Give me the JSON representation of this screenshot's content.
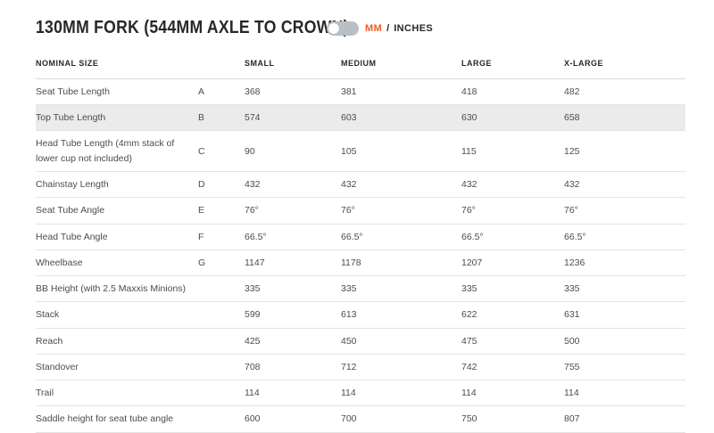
{
  "page": {
    "title": "130MM FORK (544MM AXLE TO CROWN)"
  },
  "toggle": {
    "mm_label": "MM",
    "separator": "/",
    "inches_label": "INCHES",
    "selected_unit": "MM"
  },
  "colors": {
    "accent_orange": "#F15B27",
    "highlight_row_bg": "#EBEBEB",
    "row_border": "#E3E3E3",
    "text_dark": "#25282A",
    "text_body": "#4C4C4C",
    "toggle_track": "#B9BFC6",
    "toggle_knob": "#FFFFFF"
  },
  "table": {
    "columns": [
      {
        "key": "label",
        "label": "NOMINAL SIZE"
      },
      {
        "key": "letter",
        "label": ""
      },
      {
        "key": "small",
        "label": "SMALL"
      },
      {
        "key": "medium",
        "label": "MEDIUM"
      },
      {
        "key": "large",
        "label": "LARGE"
      },
      {
        "key": "xlarge",
        "label": "X-LARGE"
      }
    ],
    "rows": [
      {
        "label": "Seat Tube Length",
        "letter": "A",
        "values": [
          "368",
          "381",
          "418",
          "482"
        ],
        "highlighted": false
      },
      {
        "label": "Top Tube Length",
        "letter": "B",
        "values": [
          "574",
          "603",
          "630",
          "658"
        ],
        "highlighted": true
      },
      {
        "label": "Head Tube Length (4mm stack of lower cup not included)",
        "letter": "C",
        "values": [
          "90",
          "105",
          "115",
          "125"
        ],
        "highlighted": false
      },
      {
        "label": "Chainstay Length",
        "letter": "D",
        "values": [
          "432",
          "432",
          "432",
          "432"
        ],
        "highlighted": false
      },
      {
        "label": "Seat Tube Angle",
        "letter": "E",
        "values": [
          "76°",
          "76°",
          "76°",
          "76°"
        ],
        "highlighted": false
      },
      {
        "label": "Head Tube Angle",
        "letter": "F",
        "values": [
          "66.5°",
          "66.5°",
          "66.5°",
          "66.5°"
        ],
        "highlighted": false
      },
      {
        "label": "Wheelbase",
        "letter": "G",
        "values": [
          "1147",
          "1178",
          "1207",
          "1236"
        ],
        "highlighted": false
      },
      {
        "label": "BB Height (with 2.5 Maxxis Minions)",
        "letter": "",
        "values": [
          "335",
          "335",
          "335",
          "335"
        ],
        "highlighted": false
      },
      {
        "label": "Stack",
        "letter": "",
        "values": [
          "599",
          "613",
          "622",
          "631"
        ],
        "highlighted": false
      },
      {
        "label": "Reach",
        "letter": "",
        "values": [
          "425",
          "450",
          "475",
          "500"
        ],
        "highlighted": false
      },
      {
        "label": "Standover",
        "letter": "",
        "values": [
          "708",
          "712",
          "742",
          "755"
        ],
        "highlighted": false
      },
      {
        "label": "Trail",
        "letter": "",
        "values": [
          "114",
          "114",
          "114",
          "114"
        ],
        "highlighted": false
      },
      {
        "label": "Saddle height for seat tube angle",
        "letter": "",
        "values": [
          "600",
          "700",
          "750",
          "807"
        ],
        "highlighted": false
      }
    ]
  }
}
